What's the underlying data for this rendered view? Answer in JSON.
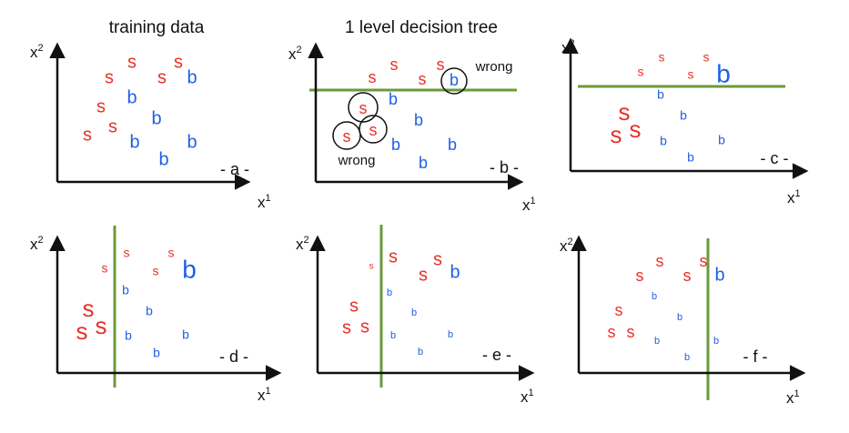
{
  "titles": {
    "left": "training data",
    "middle": "1 level decision tree"
  },
  "axis": {
    "x_base": "x",
    "x_sup": "1",
    "y_base": "x",
    "y_sup": "2"
  },
  "panels": {
    "a": {
      "tag": "- a -"
    },
    "b": {
      "tag": "- b -",
      "wrong_top": "wrong",
      "wrong_bottom": "wrong"
    },
    "c": {
      "tag": "- c -"
    },
    "d": {
      "tag": "- d -"
    },
    "e": {
      "tag": "- e -"
    },
    "f": {
      "tag": "- f -"
    }
  },
  "colors": {
    "signal": "#e8322a",
    "background": "#1f5fe6",
    "boundary": "#6a9a3a",
    "axis": "#111111"
  },
  "class_labels": {
    "signal": "s",
    "background": "b"
  }
}
